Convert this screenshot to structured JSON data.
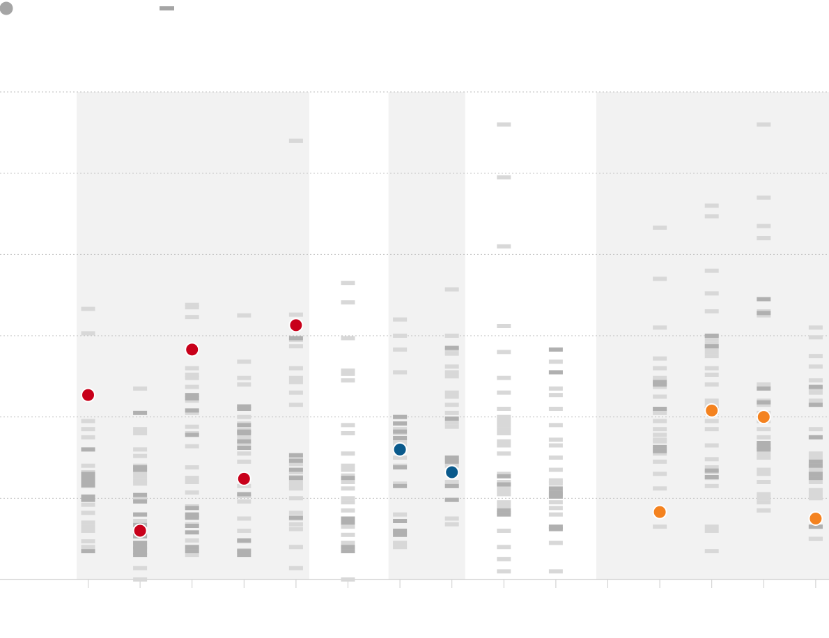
{
  "legend": [
    {
      "key": "highlight",
      "marker": "circle",
      "color": "#a5a5a5"
    },
    {
      "key": "other",
      "marker": "dash",
      "color": "#a5a5a5"
    }
  ],
  "colors": {
    "band": "#f2f2f2",
    "dash_light": "#d8d8d8",
    "dash_dark": "#b0b0b0",
    "grid": "#bdbdbd",
    "axis": "#cccccc",
    "red": "#c8001a",
    "blue": "#0a5a8c",
    "orange": "#f4821f",
    "marker_stroke": "#ffffff"
  },
  "chart_data": {
    "type": "scatter",
    "title": "",
    "xlabel": "",
    "ylabel": "",
    "ylim": [
      0,
      6
    ],
    "yticks": [
      0,
      1,
      2,
      3,
      4,
      5,
      6
    ],
    "grid": true,
    "legend_position": "top-left",
    "x_slots": 15,
    "bands": [
      {
        "from": 1,
        "to": 5
      },
      {
        "from": 7,
        "to": 8
      },
      {
        "from": 11,
        "to": 15
      }
    ],
    "columns": [
      {
        "slot": 1,
        "dot": {
          "y": 2.27,
          "color": "red"
        },
        "light": [
          3.33,
          3.03,
          1.95,
          1.85,
          1.75,
          1.4,
          1.32,
          1.25,
          1.2,
          1.15,
          0.92,
          0.82,
          0.7,
          0.65,
          0.6,
          0.47,
          0.4
        ],
        "dark": [
          1.6,
          1.3,
          1.28,
          1.24,
          1.22,
          1.18,
          1.16,
          1.02,
          0.98,
          0.35
        ]
      },
      {
        "slot": 2,
        "dot": {
          "y": 0.6,
          "color": "red"
        },
        "light": [
          2.35,
          1.85,
          1.8,
          1.6,
          1.52,
          1.4,
          1.32,
          1.27,
          1.22,
          1.18,
          1.0,
          0.98,
          0.8,
          0.72,
          0.45,
          0.14,
          0.0
        ],
        "dark": [
          2.05,
          1.38,
          1.35,
          1.04,
          0.96,
          0.8,
          0.67,
          0.55,
          0.53,
          0.45,
          0.4,
          0.3,
          0.33,
          0.38
        ]
      },
      {
        "slot": 3,
        "dot": {
          "y": 2.83,
          "color": "red"
        },
        "light": [
          3.38,
          3.35,
          3.23,
          2.6,
          2.52,
          2.48,
          2.37,
          2.2,
          2.05,
          1.88,
          1.8,
          1.64,
          1.38,
          1.25,
          1.2,
          1.07,
          0.9,
          0.78,
          0.68,
          0.48,
          0.3
        ],
        "dark": [
          2.27,
          2.23,
          2.08,
          1.78,
          0.88,
          0.8,
          0.76,
          0.66,
          0.58,
          0.35,
          0.4
        ]
      },
      {
        "slot": 4,
        "dot": {
          "y": 1.24,
          "color": "red"
        },
        "light": [
          3.25,
          2.68,
          2.48,
          2.4,
          2.13,
          2.0,
          1.92,
          1.84,
          1.75,
          1.67,
          1.55,
          1.45,
          1.15,
          1.03,
          0.96,
          0.75,
          0.6,
          0.47,
          0.36
        ],
        "dark": [
          2.13,
          2.1,
          1.9,
          1.82,
          1.8,
          1.7,
          1.62,
          1.05,
          0.48,
          0.3,
          0.35
        ]
      },
      {
        "slot": 5,
        "dot": {
          "y": 3.13,
          "color": "red"
        },
        "light": [
          5.4,
          3.26,
          2.95,
          2.87,
          2.6,
          2.48,
          2.43,
          2.3,
          2.15,
          1.5,
          1.42,
          1.32,
          1.26,
          1.2,
          1.16,
          1.12,
          1.0,
          0.82,
          0.75,
          0.68,
          0.62,
          0.4,
          0.14
        ],
        "dark": [
          2.97,
          1.53,
          1.46,
          1.35,
          1.25,
          0.76
        ]
      },
      {
        "slot": 6,
        "dot": null,
        "light": [
          3.65,
          3.41,
          2.97,
          2.57,
          2.53,
          2.45,
          1.9,
          1.8,
          1.55,
          1.4,
          1.35,
          1.28,
          1.2,
          1.12,
          1.0,
          0.95,
          0.85,
          0.75,
          0.65,
          0.55,
          0.45,
          0.0
        ],
        "dark": [
          1.25,
          0.75,
          0.7,
          0.4,
          0.35
        ]
      },
      {
        "slot": 7,
        "dot": {
          "y": 1.6,
          "color": "blue"
        },
        "light": [
          3.2,
          3.0,
          2.83,
          2.55,
          2.0,
          1.92,
          1.85,
          1.8,
          1.7,
          1.65,
          1.5,
          1.4,
          1.18,
          0.8,
          0.72,
          0.58,
          0.45,
          0.4
        ],
        "dark": [
          2.0,
          1.92,
          1.82,
          1.74,
          1.38,
          1.15,
          0.72,
          0.6,
          0.55
        ]
      },
      {
        "slot": 8,
        "dot": {
          "y": 1.32,
          "color": "blue"
        },
        "light": [
          3.57,
          3.0,
          2.83,
          2.78,
          2.62,
          2.55,
          2.5,
          2.3,
          2.25,
          2.15,
          2.05,
          1.93,
          1.88,
          1.5,
          1.46,
          1.4,
          1.32,
          1.2,
          1.15,
          0.98,
          0.75,
          0.68
        ],
        "dark": [
          2.85,
          1.98,
          1.5,
          1.45,
          1.15,
          0.98
        ]
      },
      {
        "slot": 9,
        "dot": null,
        "light": [
          5.6,
          4.95,
          4.1,
          3.12,
          2.8,
          2.48,
          2.3,
          2.1,
          2.0,
          1.95,
          1.9,
          1.85,
          1.8,
          1.7,
          1.65,
          1.55,
          1.3,
          1.2,
          1.15,
          1.1,
          1.05,
          0.95,
          0.9,
          0.82,
          0.6,
          0.4,
          0.25,
          0.1
        ],
        "dark": [
          1.27,
          1.17,
          0.85,
          0.8
        ]
      },
      {
        "slot": 10,
        "dot": null,
        "light": [
          2.68,
          2.55,
          2.35,
          2.27,
          2.1,
          1.9,
          1.72,
          1.65,
          1.5,
          1.35,
          1.22,
          1.18,
          1.05,
          0.95,
          0.88,
          0.8,
          0.45,
          0.1
        ],
        "dark": [
          2.83,
          2.55,
          1.12,
          1.07,
          1.02,
          0.65,
          0.62
        ]
      },
      {
        "slot": 11,
        "dot": null,
        "light": [],
        "dark": []
      },
      {
        "slot": 12,
        "dot": {
          "y": 0.83,
          "color": "orange"
        },
        "light": [
          4.33,
          3.7,
          3.1,
          2.72,
          2.6,
          2.48,
          2.45,
          2.42,
          2.37,
          2.25,
          2.1,
          2.08,
          2.05,
          1.95,
          1.85,
          1.78,
          1.72,
          1.7,
          1.6,
          1.55,
          1.45,
          1.3,
          1.12,
          0.65
        ],
        "dark": [
          2.4,
          2.43,
          2.1,
          1.63,
          1.58
        ]
      },
      {
        "slot": 13,
        "dot": {
          "y": 2.08,
          "color": "orange"
        },
        "light": [
          4.6,
          4.47,
          3.8,
          3.52,
          3.3,
          3.0,
          2.95,
          2.9,
          2.85,
          2.8,
          2.75,
          2.6,
          2.52,
          2.4,
          2.2,
          2.15,
          2.12,
          2.05,
          1.95,
          1.85,
          1.65,
          1.48,
          1.38,
          1.32,
          1.25,
          1.15,
          0.65,
          0.6,
          0.35
        ],
        "dark": [
          3.0,
          2.87,
          2.1,
          1.34,
          1.26
        ]
      },
      {
        "slot": 14,
        "dot": {
          "y": 2.0,
          "color": "orange"
        },
        "light": [
          5.6,
          4.7,
          4.35,
          4.2,
          3.3,
          3.25,
          2.4,
          2.2,
          2.15,
          2.05,
          1.95,
          1.85,
          1.75,
          1.65,
          1.6,
          1.55,
          1.5,
          1.5,
          1.35,
          1.3,
          1.2,
          1.05,
          1.0,
          0.95,
          0.85,
          0.85
        ],
        "dark": [
          3.45,
          3.28,
          2.35,
          2.18,
          1.68,
          1.63,
          1.6
        ]
      },
      {
        "slot": 15,
        "dot": {
          "y": 0.75,
          "color": "orange"
        },
        "light": [
          3.1,
          2.98,
          2.75,
          2.62,
          2.45,
          2.35,
          2.3,
          2.2,
          2.15,
          1.85,
          1.75,
          1.55,
          1.5,
          1.4,
          1.35,
          1.3,
          1.25,
          1.2,
          1.1,
          1.05,
          1.0,
          0.5,
          0.5
        ],
        "dark": [
          2.37,
          2.15,
          1.75,
          1.45,
          1.4,
          1.3,
          1.25,
          0.65,
          0.65
        ]
      }
    ]
  }
}
